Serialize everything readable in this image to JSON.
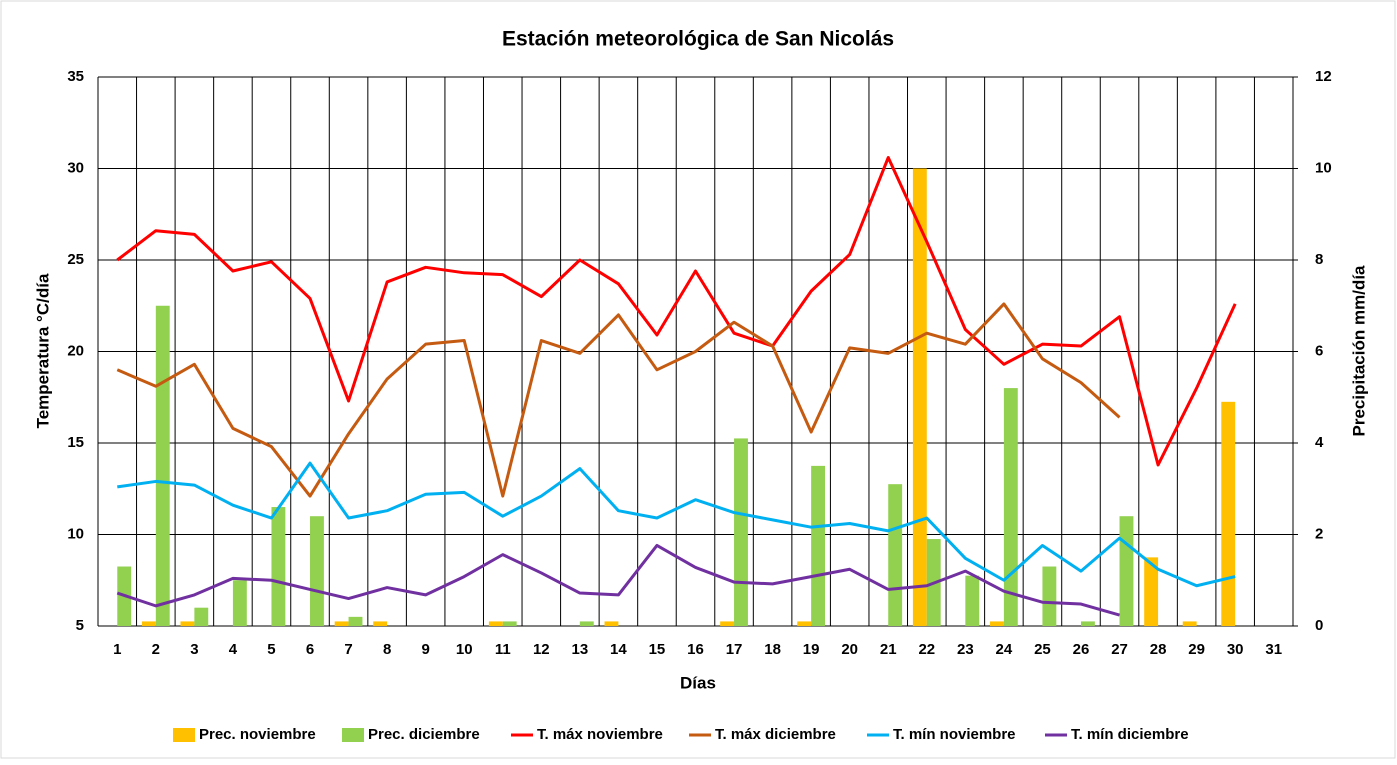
{
  "chart_data": {
    "type": "combo",
    "title": "Estación meteorológica de San Nicolás",
    "x_label": "Días",
    "y_label": "Temperatura °C/día",
    "y2_label": "Precipitación mm/día",
    "categories": [
      "1",
      "2",
      "3",
      "4",
      "5",
      "6",
      "7",
      "8",
      "9",
      "10",
      "11",
      "12",
      "13",
      "14",
      "15",
      "16",
      "17",
      "18",
      "19",
      "20",
      "21",
      "22",
      "23",
      "24",
      "25",
      "26",
      "27",
      "28",
      "29",
      "30",
      "31"
    ],
    "ylim": [
      5,
      35
    ],
    "yticks": [
      5,
      10,
      15,
      20,
      25,
      30,
      35
    ],
    "y2lim": [
      0,
      12
    ],
    "y2ticks": [
      0,
      2,
      4,
      6,
      8,
      10,
      12
    ],
    "grid": true,
    "legend": "bottom",
    "series": [
      {
        "name": "Prec. noviembre",
        "type": "bar",
        "axis": "y2",
        "color": "#ffc000",
        "values": [
          0,
          0.1,
          0.1,
          0,
          0,
          0,
          0.1,
          0.1,
          0,
          0,
          0.1,
          0,
          0,
          0.1,
          0,
          0,
          0.1,
          0,
          0.1,
          0,
          0,
          10,
          0,
          0.1,
          0,
          0,
          0,
          1.5,
          0.1,
          4.9,
          null
        ]
      },
      {
        "name": "Prec. diciembre",
        "type": "bar",
        "axis": "y2",
        "color": "#92d050",
        "values": [
          1.3,
          7.0,
          0.4,
          1.0,
          2.6,
          2.4,
          0.2,
          0,
          0,
          0,
          0.1,
          0,
          0.1,
          0,
          0,
          0,
          4.1,
          0,
          3.5,
          0,
          3.1,
          1.9,
          1.1,
          5.2,
          1.3,
          0.1,
          2.4,
          0,
          0,
          0,
          0
        ]
      },
      {
        "name": "T. máx noviembre",
        "type": "line",
        "color": "#ff0000",
        "values": [
          25,
          26.6,
          26.4,
          24.4,
          24.9,
          22.9,
          17.3,
          23.8,
          24.6,
          24.3,
          24.2,
          23,
          25,
          23.7,
          20.9,
          24.4,
          21,
          20.3,
          23.3,
          25.3,
          30.6,
          26,
          21.2,
          19.3,
          20.4,
          20.3,
          21.9,
          13.8,
          18,
          22.6,
          null
        ]
      },
      {
        "name": "T. máx diciembre",
        "type": "line",
        "color": "#c55a11",
        "values": [
          19,
          18.1,
          19.3,
          15.8,
          14.8,
          12.1,
          15.5,
          18.5,
          20.4,
          20.6,
          12.1,
          20.6,
          19.9,
          22,
          19,
          20,
          21.6,
          20.3,
          15.6,
          20.2,
          19.9,
          21,
          20.4,
          22.6,
          19.6,
          18.3,
          16.4,
          null,
          null,
          null,
          null
        ]
      },
      {
        "name": "T. mín noviembre",
        "type": "line",
        "color": "#00b0f0",
        "values": [
          12.6,
          12.9,
          12.7,
          11.6,
          10.9,
          13.9,
          10.9,
          11.3,
          12.2,
          12.3,
          11,
          12.1,
          13.6,
          11.3,
          10.9,
          11.9,
          11.2,
          10.8,
          10.4,
          10.6,
          10.2,
          10.9,
          8.7,
          7.5,
          9.4,
          8,
          9.8,
          8.1,
          7.2,
          7.7,
          null
        ]
      },
      {
        "name": "T. mín diciembre",
        "type": "line",
        "color": "#7030a0",
        "values": [
          6.8,
          6.1,
          6.7,
          7.6,
          7.5,
          7,
          6.5,
          7.1,
          6.7,
          7.7,
          8.9,
          7.9,
          6.8,
          6.7,
          9.4,
          8.2,
          7.4,
          7.3,
          7.7,
          8.1,
          7,
          7.2,
          8,
          6.9,
          6.3,
          6.2,
          5.6,
          null,
          null,
          null,
          null
        ]
      }
    ]
  }
}
